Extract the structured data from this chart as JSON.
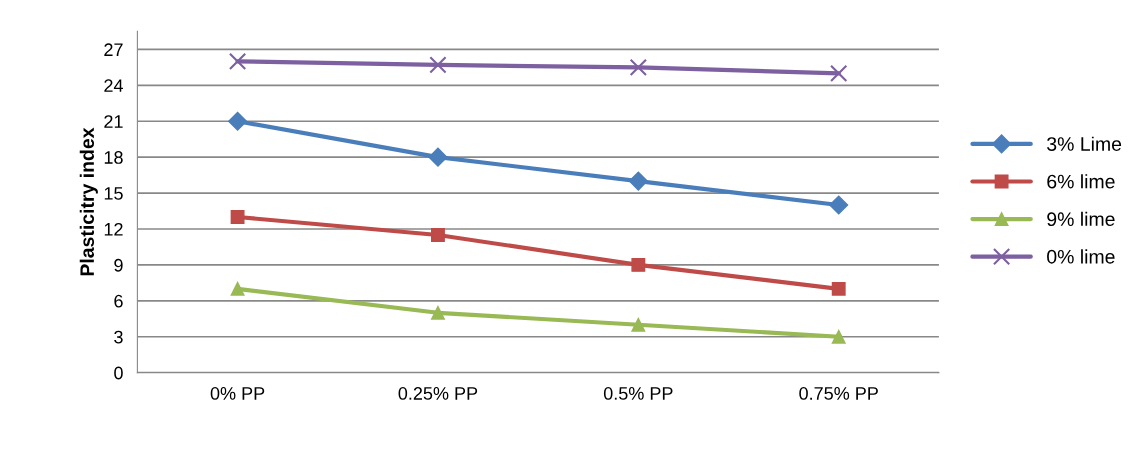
{
  "chart_data": {
    "type": "line",
    "ylabel": "Plasticitry index",
    "categories": [
      "0% PP",
      "0.25% PP",
      "0.5% PP",
      "0.75% PP"
    ],
    "series": [
      {
        "name": "3% Lime",
        "color": "#4a7ebb",
        "marker": "diamond",
        "values": [
          21,
          18,
          16,
          14
        ]
      },
      {
        "name": "6% lime",
        "color": "#be4b48",
        "marker": "square",
        "values": [
          13,
          11.5,
          9,
          7
        ]
      },
      {
        "name": "9% lime",
        "color": "#98b954",
        "marker": "triangle",
        "values": [
          7,
          5,
          4,
          3
        ]
      },
      {
        "name": "0% lime",
        "color": "#7d60a0",
        "marker": "cross",
        "values": [
          26,
          25.7,
          25.5,
          25
        ]
      }
    ],
    "ylim": [
      0,
      28.5
    ],
    "yticks": [
      0,
      3,
      6,
      9,
      12,
      15,
      18,
      21,
      24,
      27
    ],
    "grid": "y",
    "legend": "right",
    "line_style": "solid"
  }
}
